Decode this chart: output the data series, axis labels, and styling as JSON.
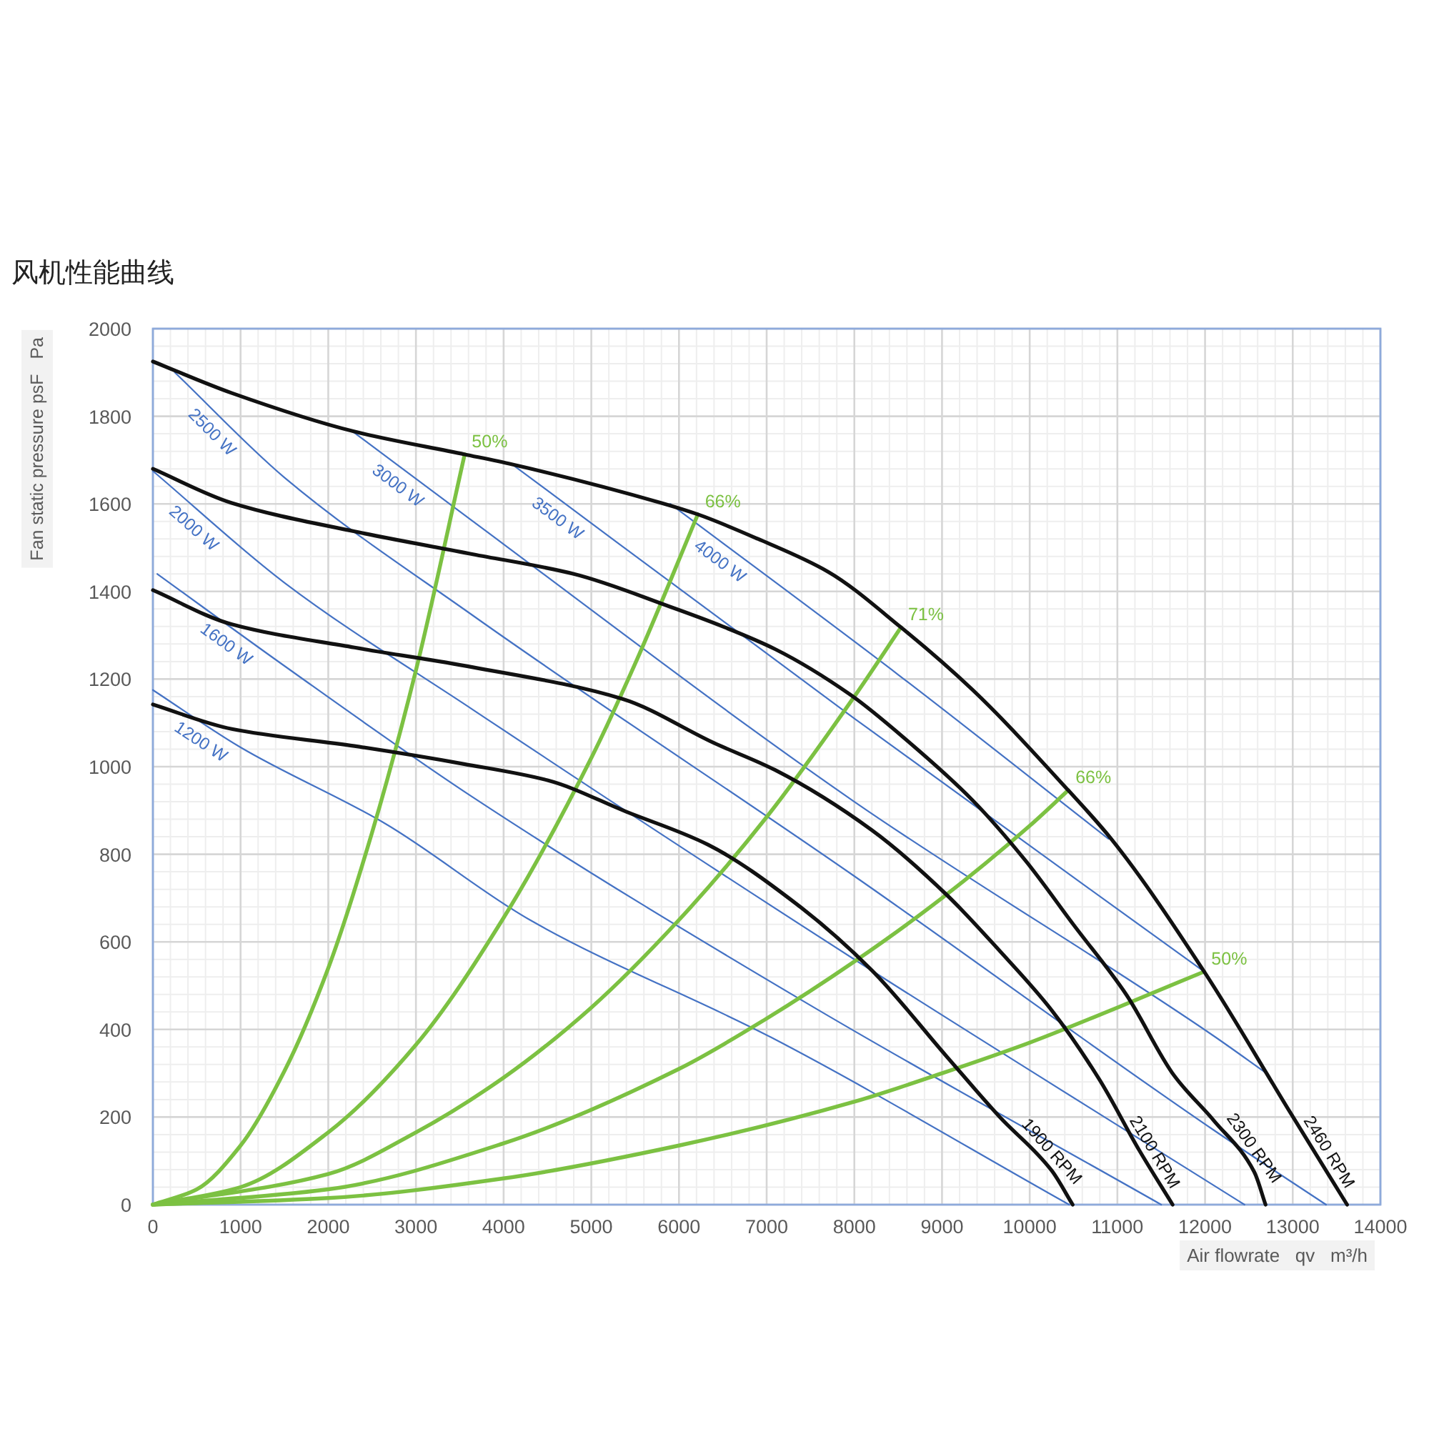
{
  "chart_data": {
    "type": "line",
    "title": "风机性能曲线",
    "xlabel": "Air flowrate   qv   m³/h",
    "ylabel": "Fan static pressure psF   Pa",
    "xlim": [
      0,
      14000
    ],
    "ylim": [
      0,
      2000
    ],
    "xticks": [
      0,
      1000,
      2000,
      3000,
      4000,
      5000,
      6000,
      7000,
      8000,
      9000,
      10000,
      11000,
      12000,
      13000,
      14000
    ],
    "yticks": [
      0,
      200,
      400,
      600,
      800,
      1000,
      1200,
      1400,
      1600,
      1800,
      2000
    ],
    "grid": true,
    "series": [
      {
        "name": "1200 W",
        "color": "#4472c4",
        "x": [
          0,
          1000,
          2650,
          4300,
          7050,
          10450
        ],
        "values": [
          1175,
          1044,
          870,
          650,
          382,
          0
        ]
      },
      {
        "name": "1600 W",
        "color": "#4472c4",
        "x": [
          50,
          1500,
          3650,
          7500,
          11500
        ],
        "values": [
          1440,
          1230,
          930,
          455,
          0
        ]
      },
      {
        "name": "2000 W",
        "color": "#4472c4",
        "x": [
          0,
          1500,
          3650,
          8000,
          12450
        ],
        "values": [
          1675,
          1420,
          1130,
          560,
          0
        ]
      },
      {
        "name": "2500 W",
        "color": "#4472c4",
        "x": [
          250,
          1500,
          3650,
          8000,
          12100,
          13380
        ],
        "values": [
          1900,
          1660,
          1345,
          750,
          170,
          0
        ]
      },
      {
        "name": "3000 W",
        "color": "#4472c4",
        "x": [
          2280,
          3650,
          8000,
          12100,
          12700
        ],
        "values": [
          1765,
          1560,
          920,
          385,
          300
        ]
      },
      {
        "name": "3500 W",
        "color": "#4472c4",
        "x": [
          4100,
          8000,
          11990
        ],
        "values": [
          1690,
          1110,
          532
        ]
      },
      {
        "name": "4000 W",
        "color": "#4472c4",
        "x": [
          5900,
          8500,
          10900
        ],
        "values": [
          1600,
          1210,
          835
        ]
      },
      {
        "name": "50%",
        "color": "#7cc142",
        "x": [
          0,
          500,
          1000,
          1500,
          2000,
          2500,
          3000,
          3556
        ],
        "values": [
          0,
          35,
          135,
          305,
          540,
          850,
          1220,
          1713
        ]
      },
      {
        "name": "66%",
        "color": "#7cc142",
        "x": [
          0,
          1000,
          2000,
          3000,
          4000,
          5000,
          5500,
          6215
        ],
        "values": [
          0,
          40,
          165,
          365,
          655,
          1020,
          1235,
          1576
        ]
      },
      {
        "name": "71%",
        "color": "#7cc142",
        "x": [
          0,
          2000,
          3000,
          4000,
          5000,
          6000,
          7000,
          8000,
          8532
        ],
        "values": [
          0,
          70,
          165,
          290,
          450,
          650,
          885,
          1160,
          1318
        ]
      },
      {
        "name": "66%",
        "color": "#7cc142",
        "x": [
          0,
          2000,
          4000,
          6000,
          7000,
          8000,
          9000,
          10000,
          10440
        ],
        "values": [
          0,
          35,
          140,
          310,
          425,
          555,
          700,
          865,
          946
        ]
      },
      {
        "name": "50%",
        "color": "#7cc142",
        "x": [
          0,
          2000,
          4000,
          6000,
          8000,
          9000,
          10000,
          11000,
          11990
        ],
        "values": [
          0,
          15,
          60,
          135,
          235,
          300,
          370,
          450,
          532
        ]
      },
      {
        "name": "1900 RPM",
        "color": "#111111",
        "x": [
          0,
          900,
          2300,
          3550,
          4500,
          5400,
          6330,
          7350,
          8200,
          9050,
          9650,
          10250,
          10490
        ],
        "values": [
          1142,
          1086,
          1047,
          1006,
          969,
          897,
          822,
          685,
          535,
          339,
          202,
          78,
          0
        ]
      },
      {
        "name": "2100 RPM",
        "color": "#111111",
        "x": [
          0,
          900,
          2300,
          3650,
          5350,
          6400,
          7100,
          8200,
          9050,
          9650,
          10250,
          10800,
          11250,
          11630
        ],
        "values": [
          1403,
          1325,
          1272,
          1227,
          1155,
          1054,
          992,
          855,
          708,
          581,
          444,
          284,
          124,
          0
        ]
      },
      {
        "name": "2300 RPM",
        "color": "#111111",
        "x": [
          0,
          900,
          2300,
          3650,
          4800,
          5900,
          6500,
          7100,
          7950,
          8600,
          9350,
          9950,
          10500,
          11100,
          11650,
          12100,
          12560,
          12690
        ],
        "values": [
          1680,
          1602,
          1537,
          1485,
          1440,
          1365,
          1320,
          1268,
          1165,
          1060,
          923,
          786,
          639,
          480,
          294,
          192,
          75,
          0
        ]
      },
      {
        "name": "2460 RPM",
        "color": "#111111",
        "x": [
          0,
          900,
          2300,
          3556,
          4100,
          5800,
          6215,
          6900,
          7700,
          8532,
          9350,
          10440,
          10930,
          11990,
          12985,
          13620
        ],
        "values": [
          1925,
          1853,
          1765,
          1713,
          1690,
          1602,
          1576,
          1520,
          1445,
          1318,
          1175,
          946,
          835,
          532,
          206,
          0
        ]
      }
    ]
  }
}
